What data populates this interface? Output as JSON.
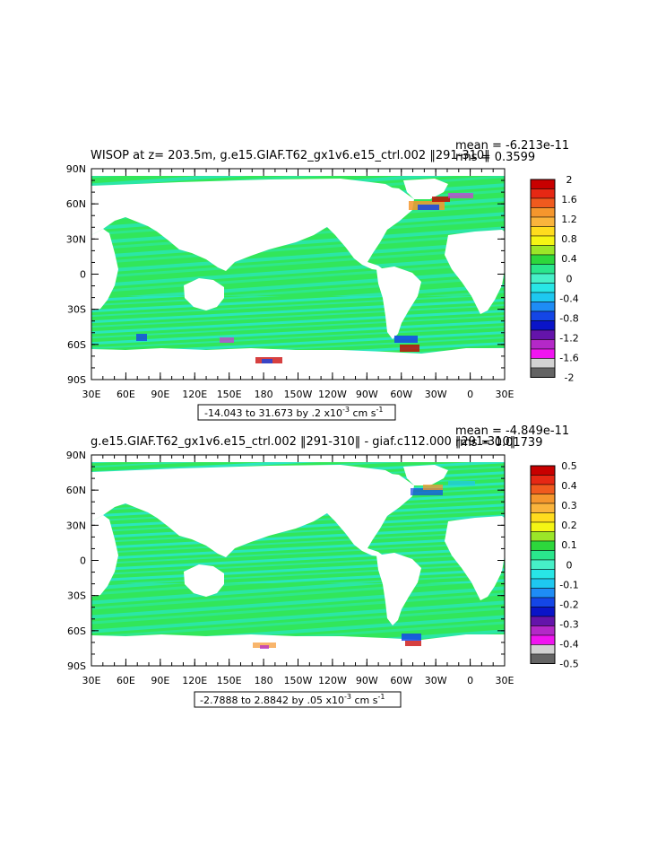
{
  "chart_data": [
    {
      "type": "heatmap",
      "title": "WISOP at z= 203.5m, g.e15.GIAF.T62_gx1v6.e15_ctrl.002 ‖291-310‖",
      "stats": {
        "mean": "mean = -6.213e-11",
        "rms": "rms = 0.3599"
      },
      "range_label": "-14.043 to 31.673 by .2 x10",
      "range_exp": "-3",
      "range_units": " cm s",
      "range_units_exp": "-1",
      "lat_ticks": [
        "90N",
        "60N",
        "30N",
        "0",
        "30S",
        "60S",
        "90S"
      ],
      "lon_ticks": [
        "30E",
        "60E",
        "90E",
        "120E",
        "150E",
        "180",
        "150W",
        "120W",
        "90W",
        "60W",
        "30W",
        "0",
        "30E"
      ],
      "colorbar_labels": [
        "2",
        "1.6",
        "1.2",
        "0.8",
        "0.4",
        "0",
        "-0.4",
        "-0.8",
        "-1.2",
        "-1.6",
        "-2"
      ],
      "colorbar_colors": [
        "#c80000",
        "#e62814",
        "#f05a1e",
        "#f5962d",
        "#fab43c",
        "#ffdc1e",
        "#f5f514",
        "#9be628",
        "#2dd73c",
        "#2ae68c",
        "#46f0c8",
        "#28e6e6",
        "#1ec8f0",
        "#1e8cf5",
        "#1446e6",
        "#0a14c8",
        "#6414aa",
        "#b428c8",
        "#f014f0",
        "#d2d2d2",
        "#646464"
      ]
    },
    {
      "type": "heatmap",
      "title": "g.e15.GIAF.T62_gx1v6.e15_ctrl.002 ‖291-310‖ - giaf.c112.000 ‖291-310‖",
      "stats": {
        "mean": "mean = -4.849e-11",
        "rms": "rms = 0.01739"
      },
      "range_label": "-2.7888 to 2.8842 by .05 x10",
      "range_exp": "-3",
      "range_units": " cm s",
      "range_units_exp": "-1",
      "lat_ticks": [
        "90N",
        "60N",
        "30N",
        "0",
        "30S",
        "60S",
        "90S"
      ],
      "lon_ticks": [
        "30E",
        "60E",
        "90E",
        "120E",
        "150E",
        "180",
        "150W",
        "120W",
        "90W",
        "60W",
        "30W",
        "0",
        "30E"
      ],
      "colorbar_labels": [
        "0.5",
        "0.4",
        "0.3",
        "0.2",
        "0.1",
        "0",
        "-0.1",
        "-0.2",
        "-0.3",
        "-0.4",
        "-0.5"
      ],
      "colorbar_colors": [
        "#c80000",
        "#e62814",
        "#f05a1e",
        "#f5962d",
        "#fab43c",
        "#ffdc1e",
        "#f5f514",
        "#9be628",
        "#2dd73c",
        "#2ae68c",
        "#46f0c8",
        "#28e6e6",
        "#1ec8f0",
        "#1e8cf5",
        "#1446e6",
        "#0a14c8",
        "#6414aa",
        "#b428c8",
        "#f014f0",
        "#d2d2d2",
        "#646464"
      ]
    }
  ]
}
